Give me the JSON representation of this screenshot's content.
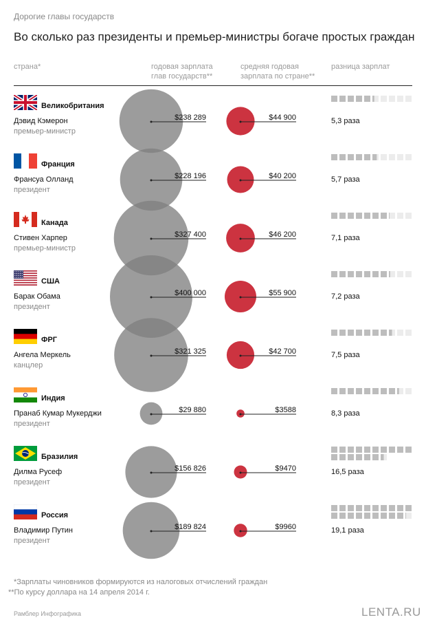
{
  "header": {
    "supertitle": "Дорогие главы государств",
    "title": "Во сколько раз президенты и премьер-министры богаче простых граждан",
    "col_country": "страна*",
    "col_leader_salary": "годовая зарплата\nглав государств**",
    "col_avg_salary": "средняя годовая\nзарплата по стране**",
    "col_ratio": "разница зарплат"
  },
  "colors": {
    "leader_circle": "#808080",
    "average_circle": "#cc3340",
    "square_full": "#bdbdbd",
    "square_empty": "#ececec"
  },
  "chart_data": {
    "type": "table",
    "rows": [
      {
        "country": "Великобритания",
        "flag": "uk-flag",
        "leader": "Дэвид Кэмерон",
        "position": "премьер-министр",
        "leader_salary": 238289,
        "leader_salary_label": "$238 289",
        "average_salary": 44900,
        "average_salary_label": "$44 900",
        "ratio": 5.3,
        "ratio_label": "5,3 раза"
      },
      {
        "country": "Франция",
        "flag": "france-flag",
        "leader": "Франсуа Олланд",
        "position": "президент",
        "leader_salary": 228196,
        "leader_salary_label": "$228 196",
        "average_salary": 40200,
        "average_salary_label": "$40 200",
        "ratio": 5.7,
        "ratio_label": "5,7 раза"
      },
      {
        "country": "Канада",
        "flag": "canada-flag",
        "leader": "Стивен Харпер",
        "position": "премьер-министр",
        "leader_salary": 327400,
        "leader_salary_label": "$327 400",
        "average_salary": 46200,
        "average_salary_label": "$46 200",
        "ratio": 7.1,
        "ratio_label": "7,1 раза"
      },
      {
        "country": "США",
        "flag": "usa-flag",
        "leader": "Барак Обама",
        "position": "президент",
        "leader_salary": 400000,
        "leader_salary_label": "$400 000",
        "average_salary": 55900,
        "average_salary_label": "$55 900",
        "ratio": 7.2,
        "ratio_label": "7,2 раза"
      },
      {
        "country": "ФРГ",
        "flag": "germany-flag",
        "leader": "Ангела Меркель",
        "position": "канцлер",
        "leader_salary": 321325,
        "leader_salary_label": "$321 325",
        "average_salary": 42700,
        "average_salary_label": "$42 700",
        "ratio": 7.5,
        "ratio_label": "7,5 раза"
      },
      {
        "country": "Индия",
        "flag": "india-flag",
        "leader": "Пранаб Кумар Мукерджи",
        "position": "президент",
        "leader_salary": 29880,
        "leader_salary_label": "$29 880",
        "average_salary": 3588,
        "average_salary_label": "$3588",
        "ratio": 8.3,
        "ratio_label": "8,3 раза"
      },
      {
        "country": "Бразилия",
        "flag": "brazil-flag",
        "leader": "Дилма Русеф",
        "position": "президент",
        "leader_salary": 156826,
        "leader_salary_label": "$156 826",
        "average_salary": 9470,
        "average_salary_label": "$9470",
        "ratio": 16.5,
        "ratio_label": "16,5 раза"
      },
      {
        "country": "Россия",
        "flag": "russia-flag",
        "leader": "Владимир Путин",
        "position": "президент",
        "leader_salary": 189824,
        "leader_salary_label": "$189 824",
        "average_salary": 9960,
        "average_salary_label": "$9960",
        "ratio": 19.1,
        "ratio_label": "19,1 раза"
      }
    ]
  },
  "footer": {
    "footnote1": "*Зарплаты чиновников формируются из налоговых отчислений граждан",
    "footnote2": "**По курсу доллара на 14 апреля 2014 г.",
    "credit": "Рамблер Инфографика",
    "logo": "LENTA.RU"
  }
}
